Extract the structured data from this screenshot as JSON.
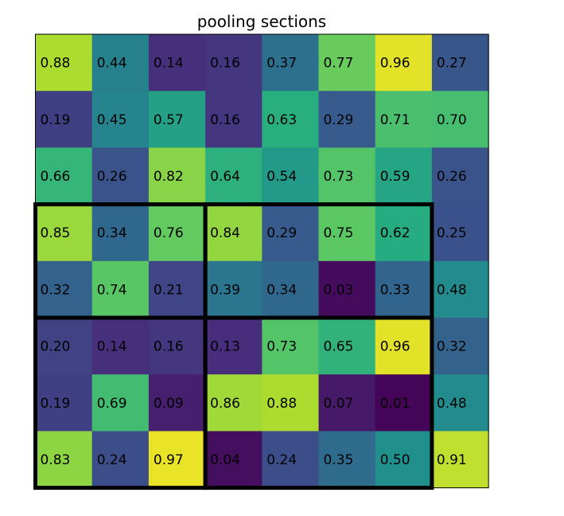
{
  "chart_data": {
    "type": "heatmap",
    "title": "pooling sections",
    "xlabel": "",
    "ylabel": "",
    "colormap": "viridis",
    "value_range": [
      0,
      1
    ],
    "grid": false,
    "rows": 8,
    "cols": 8,
    "values": [
      [
        0.88,
        0.44,
        0.14,
        0.16,
        0.37,
        0.77,
        0.96,
        0.27
      ],
      [
        0.19,
        0.45,
        0.57,
        0.16,
        0.63,
        0.29,
        0.71,
        0.7
      ],
      [
        0.66,
        0.26,
        0.82,
        0.64,
        0.54,
        0.73,
        0.59,
        0.26
      ],
      [
        0.85,
        0.34,
        0.76,
        0.84,
        0.29,
        0.75,
        0.62,
        0.25
      ],
      [
        0.32,
        0.74,
        0.21,
        0.39,
        0.34,
        0.03,
        0.33,
        0.48
      ],
      [
        0.2,
        0.14,
        0.16,
        0.13,
        0.73,
        0.65,
        0.96,
        0.32
      ],
      [
        0.19,
        0.69,
        0.09,
        0.86,
        0.88,
        0.07,
        0.01,
        0.48
      ],
      [
        0.83,
        0.24,
        0.97,
        0.04,
        0.24,
        0.35,
        0.5,
        0.91
      ]
    ],
    "labels": [
      [
        "0.88",
        "0.44",
        "0.14",
        "0.16",
        "0.37",
        "0.77",
        "0.96",
        "0.27"
      ],
      [
        "0.19",
        "0.45",
        "0.57",
        "0.16",
        "0.63",
        "0.29",
        "0.71",
        "0.70"
      ],
      [
        "0.66",
        "0.26",
        "0.82",
        "0.64",
        "0.54",
        "0.73",
        "0.59",
        "0.26"
      ],
      [
        "0.85",
        "0.34",
        "0.76",
        "0.84",
        "0.29",
        "0.75",
        "0.62",
        "0.25"
      ],
      [
        "0.32",
        "0.74",
        "0.21",
        "0.39",
        "0.34",
        "0.03",
        "0.33",
        "0.48"
      ],
      [
        "0.20",
        "0.14",
        "0.16",
        "0.13",
        "0.73",
        "0.65",
        "0.96",
        "0.32"
      ],
      [
        "0.19",
        "0.69",
        "0.09",
        "0.86",
        "0.88",
        "0.07",
        "0.01",
        "0.48"
      ],
      [
        "0.83",
        "0.24",
        "0.97",
        "0.04",
        "0.24",
        "0.35",
        "0.50",
        "0.91"
      ]
    ],
    "pooling_sections": [
      {
        "row_start": 3,
        "row_end": 4,
        "col_start": 0,
        "col_end": 2
      },
      {
        "row_start": 3,
        "row_end": 4,
        "col_start": 3,
        "col_end": 6
      },
      {
        "row_start": 5,
        "row_end": 7,
        "col_start": 0,
        "col_end": 2
      },
      {
        "row_start": 5,
        "row_end": 7,
        "col_start": 3,
        "col_end": 6
      }
    ]
  }
}
